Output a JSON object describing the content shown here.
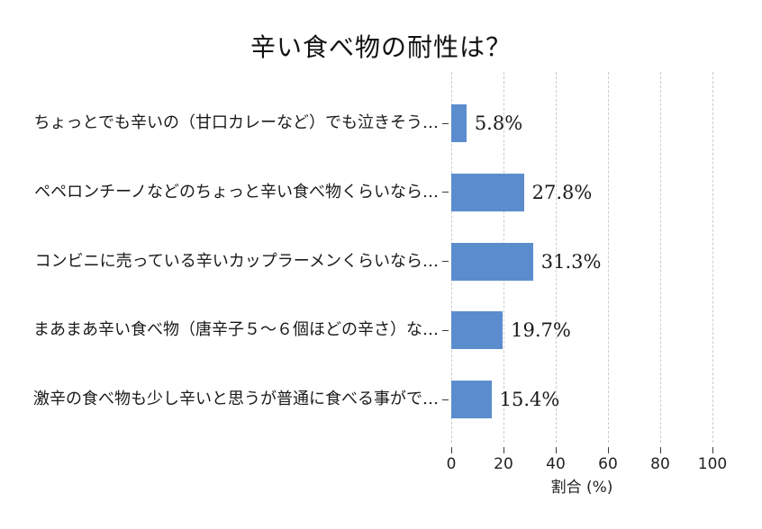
{
  "chart_data": {
    "type": "bar",
    "orientation": "horizontal",
    "title": "辛い食べ物の耐性は？",
    "xlabel": "割合 (%)",
    "categories": [
      "ちょっとでも辛いの（甘口カレーなど）でも泣きそう…",
      "ペペロンチーノなどのちょっと辛い食べ物くらいなら…",
      "コンビニに売っている辛いカップラーメンくらいなら…",
      "まあまあ辛い食べ物（唐辛子５〜６個ほどの辛さ）な…",
      "激辛の食べ物も少し辛いと思うが普通に食べる事がで…"
    ],
    "values": [
      5.8,
      27.8,
      31.3,
      19.7,
      15.4
    ],
    "value_labels": [
      "5.8%",
      "27.8%",
      "31.3%",
      "19.7%",
      "15.4%"
    ],
    "xticks": [
      0,
      20,
      40,
      60,
      80,
      100
    ],
    "xlim": [
      0,
      100
    ],
    "grid": "vertical-dashed",
    "legend": "none",
    "colors": {
      "bar": "#5b8cce",
      "gridline": "#cccccc",
      "text": "#1a1a1a",
      "axis_tick": "#3a3a3a"
    }
  }
}
